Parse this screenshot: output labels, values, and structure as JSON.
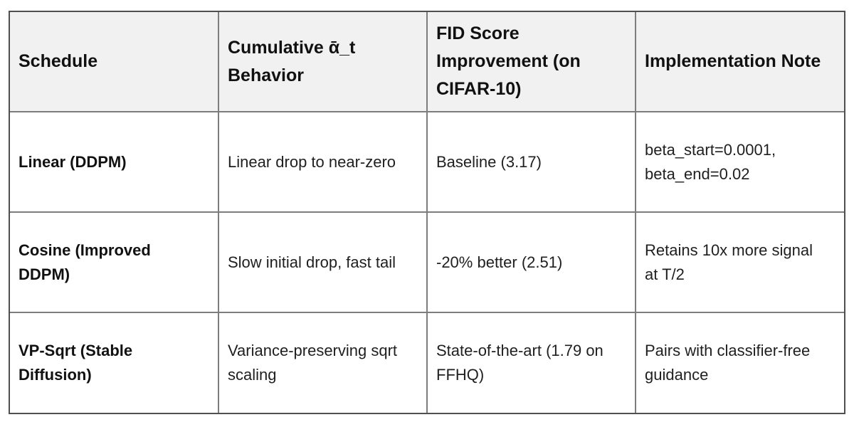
{
  "colors": {
    "page_bg": "#ffffff",
    "header_bg": "#f1f1f1",
    "border_outer": "#4f4f4f",
    "border_inner": "#7d7d7d",
    "header_text": "#111111",
    "body_text": "#1f1f1f"
  },
  "table": {
    "headers": [
      "Schedule",
      "Cumulative ᾱ_t Behavior",
      "FID Score Improvement (on CIFAR-10)",
      "Implementation Note"
    ],
    "rows": [
      [
        "Linear (DDPM)",
        "Linear drop to near-zero",
        "Baseline (3.17)",
        "beta_start=0.0001, beta_end=0.02"
      ],
      [
        "Cosine (Improved DDPM)",
        "Slow initial drop, fast tail",
        "-20% better (2.51)",
        "Retains 10x more signal at T/2"
      ],
      [
        "VP-Sqrt (Stable Diffusion)",
        "Variance-preserving sqrt scaling",
        "State-of-the-art (1.79 on FFHQ)",
        "Pairs with classifier-free guidance"
      ]
    ]
  }
}
